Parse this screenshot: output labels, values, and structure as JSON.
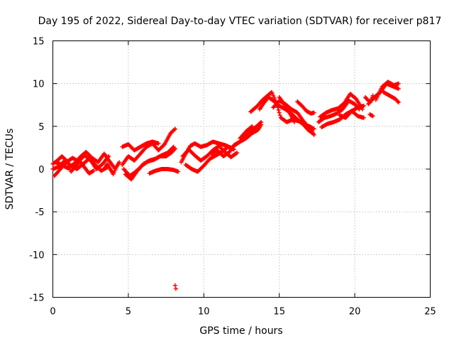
{
  "chart_data": {
    "type": "scatter",
    "title": "Day 195 of 2022, Sidereal Day-to-day VTEC variation (SDTVAR) for receiver p817",
    "xlabel": "GPS time / hours",
    "ylabel": "SDTVAR / TECUs",
    "xlim": [
      0,
      25
    ],
    "ylim": [
      -15,
      15
    ],
    "xticks": [
      0,
      5,
      10,
      15,
      20,
      25
    ],
    "yticks": [
      -15,
      -10,
      -5,
      0,
      5,
      10,
      15
    ],
    "grid": true,
    "marker": "+",
    "color": "#ff0000",
    "series": [
      {
        "name": "SDTVAR",
        "tracks": [
          [
            [
              0.0,
              0.0
            ],
            [
              0.4,
              0.3
            ],
            [
              0.8,
              1.0
            ],
            [
              1.2,
              0.4
            ],
            [
              1.6,
              0.0
            ],
            [
              2.0,
              0.6
            ],
            [
              2.4,
              1.2
            ],
            [
              2.8,
              0.5
            ],
            [
              3.2,
              -0.2
            ],
            [
              3.6,
              0.2
            ]
          ],
          [
            [
              0.1,
              -0.8
            ],
            [
              0.5,
              0.0
            ],
            [
              0.9,
              0.8
            ],
            [
              1.3,
              1.3
            ],
            [
              1.7,
              0.9
            ],
            [
              2.1,
              1.6
            ],
            [
              2.5,
              1.0
            ],
            [
              2.9,
              0.0
            ],
            [
              3.3,
              0.6
            ],
            [
              3.7,
              1.5
            ]
          ],
          [
            [
              0.2,
              0.8
            ],
            [
              0.6,
              0.5
            ],
            [
              1.0,
              0.1
            ],
            [
              1.4,
              0.6
            ],
            [
              1.8,
              1.4
            ],
            [
              2.2,
              2.0
            ],
            [
              2.6,
              1.3
            ],
            [
              3.0,
              0.8
            ],
            [
              3.4,
              1.8
            ],
            [
              3.8,
              0.8
            ],
            [
              4.1,
              0.1
            ]
          ],
          [
            [
              0.0,
              0.6
            ],
            [
              0.3,
              1.0
            ],
            [
              0.6,
              1.5
            ],
            [
              0.9,
              1.0
            ],
            [
              1.2,
              -0.3
            ],
            [
              1.5,
              0.3
            ],
            [
              1.8,
              0.9
            ],
            [
              2.1,
              0.2
            ],
            [
              2.4,
              -0.5
            ],
            [
              2.7,
              -0.2
            ]
          ],
          [
            [
              3.4,
              0.0
            ],
            [
              3.6,
              0.6
            ],
            [
              3.8,
              0.0
            ],
            [
              4.0,
              -0.6
            ],
            [
              4.2,
              0.2
            ],
            [
              4.4,
              0.8
            ]
          ],
          [
            [
              4.6,
              2.6
            ],
            [
              5.0,
              2.9
            ],
            [
              5.4,
              2.2
            ],
            [
              5.8,
              2.6
            ],
            [
              6.2,
              3.0
            ],
            [
              6.6,
              3.2
            ],
            [
              7.0,
              3.0
            ]
          ],
          [
            [
              4.6,
              0.5
            ],
            [
              5.0,
              1.5
            ],
            [
              5.4,
              1.0
            ],
            [
              5.8,
              1.8
            ],
            [
              6.2,
              2.6
            ],
            [
              6.6,
              3.0
            ],
            [
              7.0,
              2.2
            ],
            [
              7.4,
              2.9
            ],
            [
              7.8,
              4.2
            ],
            [
              8.1,
              4.7
            ]
          ],
          [
            [
              4.7,
              0.0
            ],
            [
              5.1,
              -0.8
            ],
            [
              5.5,
              -0.3
            ],
            [
              5.9,
              0.4
            ],
            [
              6.3,
              0.9
            ],
            [
              6.7,
              1.1
            ],
            [
              7.1,
              1.5
            ],
            [
              7.5,
              1.5
            ],
            [
              7.9,
              2.0
            ],
            [
              8.1,
              2.4
            ]
          ],
          [
            [
              4.8,
              -0.6
            ],
            [
              5.2,
              -1.2
            ],
            [
              5.6,
              -0.2
            ],
            [
              6.0,
              0.6
            ],
            [
              6.4,
              1.0
            ],
            [
              6.8,
              1.2
            ],
            [
              7.2,
              1.6
            ],
            [
              7.6,
              1.9
            ],
            [
              8.0,
              2.6
            ]
          ],
          [
            [
              6.4,
              -0.5
            ],
            [
              6.8,
              -0.2
            ],
            [
              7.2,
              0.0
            ],
            [
              7.6,
              0.0
            ],
            [
              8.0,
              -0.1
            ],
            [
              8.3,
              -0.3
            ]
          ],
          [
            [
              8.1,
              -13.6
            ],
            [
              8.15,
              -14.0
            ]
          ],
          [
            [
              8.5,
              0.8
            ],
            [
              8.8,
              1.8
            ],
            [
              9.1,
              2.7
            ],
            [
              9.4,
              3.0
            ],
            [
              9.8,
              2.6
            ],
            [
              10.2,
              2.8
            ],
            [
              10.6,
              3.2
            ],
            [
              11.0,
              3.0
            ],
            [
              11.4,
              2.8
            ],
            [
              11.8,
              2.5
            ]
          ],
          [
            [
              8.6,
              1.5
            ],
            [
              9.0,
              2.3
            ],
            [
              9.4,
              1.6
            ],
            [
              9.8,
              1.0
            ],
            [
              10.2,
              1.5
            ],
            [
              10.6,
              2.2
            ],
            [
              11.0,
              2.7
            ],
            [
              11.4,
              2.0
            ],
            [
              11.8,
              1.4
            ],
            [
              12.2,
              1.9
            ]
          ],
          [
            [
              8.8,
              0.5
            ],
            [
              9.2,
              0.0
            ],
            [
              9.6,
              -0.3
            ],
            [
              10.0,
              0.4
            ],
            [
              10.4,
              1.2
            ],
            [
              10.8,
              1.6
            ],
            [
              11.2,
              2.0
            ],
            [
              11.6,
              2.6
            ],
            [
              12.0,
              2.3
            ]
          ],
          [
            [
              10.5,
              1.8
            ],
            [
              10.9,
              2.2
            ],
            [
              11.3,
              1.5
            ],
            [
              11.7,
              2.0
            ],
            [
              12.0,
              2.8
            ],
            [
              12.4,
              3.2
            ],
            [
              12.8,
              3.6
            ],
            [
              13.2,
              4.2
            ],
            [
              13.6,
              4.6
            ],
            [
              13.8,
              5.2
            ]
          ],
          [
            [
              11.9,
              2.6
            ],
            [
              12.3,
              3.1
            ],
            [
              12.7,
              3.7
            ],
            [
              13.1,
              4.4
            ],
            [
              13.5,
              5.0
            ],
            [
              13.8,
              5.5
            ]
          ],
          [
            [
              12.4,
              3.6
            ],
            [
              12.8,
              4.4
            ],
            [
              13.2,
              5.0
            ]
          ],
          [
            [
              13.1,
              6.7
            ],
            [
              13.5,
              7.3
            ],
            [
              13.9,
              8.1
            ],
            [
              14.3,
              8.7
            ],
            [
              14.5,
              9.0
            ],
            [
              14.8,
              7.8
            ],
            [
              15.1,
              6.0
            ],
            [
              15.5,
              5.5
            ],
            [
              15.9,
              5.8
            ],
            [
              16.3,
              5.6
            ],
            [
              16.7,
              5.2
            ],
            [
              17.0,
              5.0
            ],
            [
              17.3,
              4.7
            ]
          ],
          [
            [
              13.7,
              7.0
            ],
            [
              14.0,
              7.8
            ],
            [
              14.3,
              8.4
            ],
            [
              14.6,
              8.0
            ],
            [
              15.0,
              7.4
            ],
            [
              15.4,
              7.0
            ],
            [
              15.8,
              6.5
            ],
            [
              16.2,
              5.8
            ],
            [
              16.6,
              5.2
            ],
            [
              16.9,
              4.6
            ],
            [
              17.2,
              4.2
            ]
          ],
          [
            [
              14.6,
              7.2
            ],
            [
              15.0,
              8.0
            ],
            [
              15.4,
              7.6
            ],
            [
              15.8,
              7.0
            ],
            [
              16.2,
              6.6
            ],
            [
              16.6,
              5.6
            ],
            [
              17.0,
              4.8
            ],
            [
              17.3,
              4.0
            ]
          ],
          [
            [
              15.0,
              8.4
            ],
            [
              15.4,
              7.4
            ],
            [
              15.8,
              6.2
            ],
            [
              16.0,
              5.5
            ]
          ],
          [
            [
              16.2,
              7.9
            ],
            [
              16.5,
              7.4
            ],
            [
              16.8,
              6.8
            ],
            [
              17.1,
              6.5
            ],
            [
              17.3,
              6.6
            ]
          ],
          [
            [
              17.6,
              5.5
            ],
            [
              18.0,
              6.0
            ],
            [
              18.4,
              6.2
            ],
            [
              18.8,
              6.5
            ],
            [
              19.2,
              7.0
            ],
            [
              19.6,
              8.0
            ],
            [
              20.0,
              7.6
            ],
            [
              20.3,
              7.0
            ]
          ],
          [
            [
              17.8,
              4.9
            ],
            [
              18.2,
              5.3
            ],
            [
              18.6,
              5.5
            ],
            [
              19.0,
              5.8
            ],
            [
              19.4,
              6.4
            ],
            [
              19.8,
              6.8
            ],
            [
              20.2,
              7.2
            ],
            [
              20.6,
              7.4
            ]
          ],
          [
            [
              17.7,
              6.1
            ],
            [
              18.1,
              6.6
            ],
            [
              18.5,
              6.9
            ],
            [
              18.9,
              7.1
            ],
            [
              19.3,
              7.7
            ],
            [
              19.7,
              8.8
            ],
            [
              20.1,
              8.2
            ],
            [
              20.5,
              7.0
            ]
          ],
          [
            [
              19.0,
              6.3
            ],
            [
              19.4,
              6.0
            ],
            [
              19.8,
              6.8
            ],
            [
              20.2,
              6.2
            ],
            [
              20.6,
              6.0
            ]
          ],
          [
            [
              20.9,
              7.6
            ],
            [
              21.3,
              8.4
            ],
            [
              21.7,
              9.0
            ],
            [
              22.1,
              10.0
            ],
            [
              22.5,
              9.7
            ],
            [
              22.9,
              9.4
            ]
          ],
          [
            [
              21.4,
              8.1
            ],
            [
              21.8,
              9.6
            ],
            [
              22.2,
              10.2
            ],
            [
              22.6,
              9.8
            ],
            [
              22.9,
              10.0
            ]
          ],
          [
            [
              21.9,
              9.0
            ],
            [
              22.3,
              8.6
            ],
            [
              22.7,
              8.2
            ],
            [
              22.9,
              7.8
            ]
          ],
          [
            [
              20.7,
              8.4
            ],
            [
              21.0,
              7.8
            ],
            [
              21.2,
              8.6
            ]
          ],
          [
            [
              21.0,
              6.4
            ],
            [
              21.2,
              6.2
            ]
          ]
        ]
      }
    ]
  }
}
